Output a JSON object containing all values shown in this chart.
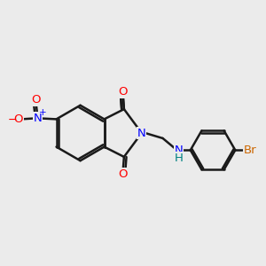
{
  "background_color": "#ebebeb",
  "bond_color": "#1a1a1a",
  "bond_width": 1.8,
  "atom_colors": {
    "N": "#0000ff",
    "O": "#ff0000",
    "Br": "#cc6600",
    "NH": "#008080",
    "plus": "#0000ff",
    "minus": "#ff0000"
  },
  "font_size": 9.5
}
